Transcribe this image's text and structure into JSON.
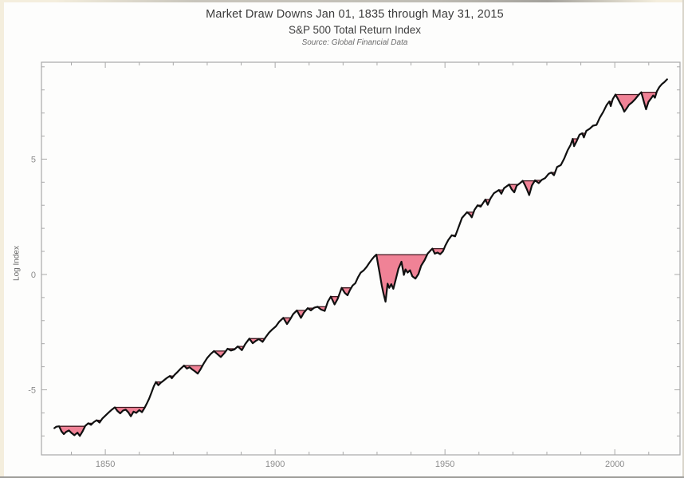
{
  "chart_data": {
    "type": "line",
    "title": "Market Draw Downs Jan 01, 1835 through May 31, 2015",
    "subtitle": "S&P 500 Total Return Index",
    "source": "Source: Global Financial Data",
    "xlabel": "",
    "ylabel": "Log Index",
    "xlim": [
      1831.2,
      2019.2
    ],
    "ylim": [
      -7.82,
      9.2
    ],
    "x_ticks": [
      1850,
      1900,
      1950,
      2000
    ],
    "x_tick_labels": [
      "1850",
      "1900",
      "1950",
      "2000"
    ],
    "x_minor_tick_step_years": 10,
    "y_ticks": [
      -5,
      0,
      5
    ],
    "y_tick_labels": [
      "-5",
      "0",
      "5"
    ],
    "y_minor_tick_step": 1,
    "grid": false,
    "legend": "none",
    "frame": true,
    "axis_color": "#a9a9a9",
    "line_color": "#101010",
    "drawdown_fill": "#f08296",
    "drawdown_outline": "#421820",
    "drawdowns_shaded": true,
    "series": [
      {
        "name": "S&P 500 Total Return (log index)",
        "points": [
          [
            1835.0,
            -6.66
          ],
          [
            1835.6,
            -6.6
          ],
          [
            1836.4,
            -6.58
          ],
          [
            1837.1,
            -6.8
          ],
          [
            1837.8,
            -6.92
          ],
          [
            1838.5,
            -6.82
          ],
          [
            1839.3,
            -6.76
          ],
          [
            1840.1,
            -6.88
          ],
          [
            1840.9,
            -6.97
          ],
          [
            1841.8,
            -6.86
          ],
          [
            1842.5,
            -7.0
          ],
          [
            1843.3,
            -6.8
          ],
          [
            1844.1,
            -6.56
          ],
          [
            1845.0,
            -6.45
          ],
          [
            1845.8,
            -6.52
          ],
          [
            1846.6,
            -6.4
          ],
          [
            1847.5,
            -6.32
          ],
          [
            1848.3,
            -6.42
          ],
          [
            1849.1,
            -6.25
          ],
          [
            1850.0,
            -6.12
          ],
          [
            1851.0,
            -5.98
          ],
          [
            1852.0,
            -5.85
          ],
          [
            1852.8,
            -5.76
          ],
          [
            1853.6,
            -5.92
          ],
          [
            1854.4,
            -6.02
          ],
          [
            1855.2,
            -5.9
          ],
          [
            1856.0,
            -5.86
          ],
          [
            1856.8,
            -5.98
          ],
          [
            1857.5,
            -6.15
          ],
          [
            1858.3,
            -5.95
          ],
          [
            1859.1,
            -6.0
          ],
          [
            1860.0,
            -5.88
          ],
          [
            1860.8,
            -5.97
          ],
          [
            1861.5,
            -5.8
          ],
          [
            1862.2,
            -5.6
          ],
          [
            1862.9,
            -5.38
          ],
          [
            1863.6,
            -5.12
          ],
          [
            1864.3,
            -4.84
          ],
          [
            1864.9,
            -4.66
          ],
          [
            1865.6,
            -4.8
          ],
          [
            1866.3,
            -4.7
          ],
          [
            1867.0,
            -4.62
          ],
          [
            1868.0,
            -4.5
          ],
          [
            1869.0,
            -4.4
          ],
          [
            1869.6,
            -4.5
          ],
          [
            1870.4,
            -4.35
          ],
          [
            1871.3,
            -4.22
          ],
          [
            1872.2,
            -4.08
          ],
          [
            1873.2,
            -3.95
          ],
          [
            1874.0,
            -4.08
          ],
          [
            1874.8,
            -4.02
          ],
          [
            1875.6,
            -4.12
          ],
          [
            1876.4,
            -4.2
          ],
          [
            1877.2,
            -4.3
          ],
          [
            1878.0,
            -4.12
          ],
          [
            1879.0,
            -3.85
          ],
          [
            1880.0,
            -3.62
          ],
          [
            1881.0,
            -3.45
          ],
          [
            1882.0,
            -3.32
          ],
          [
            1883.0,
            -3.45
          ],
          [
            1884.0,
            -3.58
          ],
          [
            1885.0,
            -3.42
          ],
          [
            1886.0,
            -3.22
          ],
          [
            1887.0,
            -3.3
          ],
          [
            1888.0,
            -3.25
          ],
          [
            1889.0,
            -3.12
          ],
          [
            1890.2,
            -3.28
          ],
          [
            1891.2,
            -3.02
          ],
          [
            1892.4,
            -2.78
          ],
          [
            1893.4,
            -2.98
          ],
          [
            1894.3,
            -2.88
          ],
          [
            1895.2,
            -2.8
          ],
          [
            1896.3,
            -2.92
          ],
          [
            1897.2,
            -2.72
          ],
          [
            1898.2,
            -2.52
          ],
          [
            1899.2,
            -2.38
          ],
          [
            1900.2,
            -2.25
          ],
          [
            1901.2,
            -2.05
          ],
          [
            1902.4,
            -1.88
          ],
          [
            1903.5,
            -2.15
          ],
          [
            1904.4,
            -1.95
          ],
          [
            1905.3,
            -1.72
          ],
          [
            1906.4,
            -1.56
          ],
          [
            1907.6,
            -1.88
          ],
          [
            1908.5,
            -1.65
          ],
          [
            1909.6,
            -1.46
          ],
          [
            1910.5,
            -1.56
          ],
          [
            1911.5,
            -1.44
          ],
          [
            1912.5,
            -1.4
          ],
          [
            1913.5,
            -1.52
          ],
          [
            1914.6,
            -1.58
          ],
          [
            1915.5,
            -1.18
          ],
          [
            1916.4,
            -0.96
          ],
          [
            1917.5,
            -1.3
          ],
          [
            1918.4,
            -1.06
          ],
          [
            1919.6,
            -0.58
          ],
          [
            1920.5,
            -0.8
          ],
          [
            1921.3,
            -0.9
          ],
          [
            1922.0,
            -0.68
          ],
          [
            1922.8,
            -0.48
          ],
          [
            1923.6,
            -0.38
          ],
          [
            1924.4,
            -0.12
          ],
          [
            1925.2,
            0.08
          ],
          [
            1926.1,
            0.18
          ],
          [
            1926.9,
            0.32
          ],
          [
            1927.7,
            0.5
          ],
          [
            1928.5,
            0.66
          ],
          [
            1929.2,
            0.78
          ],
          [
            1929.8,
            0.86
          ],
          [
            1930.4,
            0.35
          ],
          [
            1930.9,
            -0.05
          ],
          [
            1931.4,
            -0.48
          ],
          [
            1931.9,
            -0.82
          ],
          [
            1932.5,
            -1.18
          ],
          [
            1933.1,
            -0.4
          ],
          [
            1933.6,
            -0.58
          ],
          [
            1934.2,
            -0.42
          ],
          [
            1934.8,
            -0.62
          ],
          [
            1935.5,
            -0.22
          ],
          [
            1936.3,
            0.25
          ],
          [
            1937.2,
            0.55
          ],
          [
            1937.9,
            -0.02
          ],
          [
            1938.4,
            0.22
          ],
          [
            1939.0,
            0.08
          ],
          [
            1939.7,
            0.18
          ],
          [
            1940.4,
            -0.08
          ],
          [
            1941.3,
            -0.18
          ],
          [
            1942.2,
            0.02
          ],
          [
            1943.0,
            0.38
          ],
          [
            1944.0,
            0.62
          ],
          [
            1944.9,
            0.9
          ],
          [
            1945.8,
            1.05
          ],
          [
            1946.3,
            1.12
          ],
          [
            1947.0,
            0.9
          ],
          [
            1947.8,
            0.95
          ],
          [
            1948.6,
            0.88
          ],
          [
            1949.4,
            1.0
          ],
          [
            1950.1,
            1.25
          ],
          [
            1951.0,
            1.5
          ],
          [
            1952.0,
            1.7
          ],
          [
            1953.0,
            1.65
          ],
          [
            1954.0,
            2.05
          ],
          [
            1955.0,
            2.45
          ],
          [
            1956.5,
            2.7
          ],
          [
            1957.3,
            2.6
          ],
          [
            1957.9,
            2.48
          ],
          [
            1958.7,
            2.8
          ],
          [
            1959.6,
            3.0
          ],
          [
            1960.5,
            2.94
          ],
          [
            1961.9,
            3.25
          ],
          [
            1962.6,
            3.02
          ],
          [
            1963.4,
            3.3
          ],
          [
            1964.4,
            3.52
          ],
          [
            1965.9,
            3.66
          ],
          [
            1966.6,
            3.5
          ],
          [
            1967.4,
            3.74
          ],
          [
            1968.9,
            3.9
          ],
          [
            1969.6,
            3.7
          ],
          [
            1970.4,
            3.56
          ],
          [
            1971.1,
            3.85
          ],
          [
            1972.1,
            3.96
          ],
          [
            1972.9,
            4.06
          ],
          [
            1973.6,
            3.86
          ],
          [
            1974.2,
            3.66
          ],
          [
            1974.8,
            3.44
          ],
          [
            1975.6,
            3.86
          ],
          [
            1976.5,
            4.08
          ],
          [
            1977.6,
            3.96
          ],
          [
            1978.5,
            4.1
          ],
          [
            1979.5,
            4.18
          ],
          [
            1980.5,
            4.36
          ],
          [
            1981.3,
            4.42
          ],
          [
            1982.1,
            4.3
          ],
          [
            1983.0,
            4.66
          ],
          [
            1984.1,
            4.74
          ],
          [
            1985.1,
            5.02
          ],
          [
            1986.1,
            5.38
          ],
          [
            1987.0,
            5.62
          ],
          [
            1987.6,
            5.88
          ],
          [
            1988.0,
            5.56
          ],
          [
            1988.7,
            5.76
          ],
          [
            1989.6,
            6.06
          ],
          [
            1990.4,
            6.12
          ],
          [
            1990.9,
            5.94
          ],
          [
            1991.6,
            6.22
          ],
          [
            1992.6,
            6.32
          ],
          [
            1993.6,
            6.45
          ],
          [
            1994.6,
            6.48
          ],
          [
            1995.6,
            6.8
          ],
          [
            1996.6,
            7.05
          ],
          [
            1997.6,
            7.35
          ],
          [
            1998.4,
            7.5
          ],
          [
            1998.8,
            7.3
          ],
          [
            1999.4,
            7.6
          ],
          [
            2000.2,
            7.8
          ],
          [
            2000.9,
            7.62
          ],
          [
            2001.6,
            7.42
          ],
          [
            2002.1,
            7.3
          ],
          [
            2002.8,
            7.06
          ],
          [
            2003.4,
            7.18
          ],
          [
            2004.2,
            7.36
          ],
          [
            2005.1,
            7.46
          ],
          [
            2006.1,
            7.62
          ],
          [
            2007.0,
            7.78
          ],
          [
            2007.8,
            7.9
          ],
          [
            2008.5,
            7.52
          ],
          [
            2009.2,
            7.16
          ],
          [
            2009.9,
            7.48
          ],
          [
            2010.6,
            7.62
          ],
          [
            2011.3,
            7.76
          ],
          [
            2011.8,
            7.66
          ],
          [
            2012.4,
            7.94
          ],
          [
            2013.1,
            8.12
          ],
          [
            2013.9,
            8.26
          ],
          [
            2014.6,
            8.34
          ],
          [
            2015.4,
            8.46
          ]
        ]
      }
    ],
    "major_drawdowns_visible": [
      "1836-1844",
      "1853-1861",
      "1873-1878",
      "1882-1886",
      "1892-1897",
      "1902-1904",
      "1906-1909",
      "1929-1944",
      "1946-1950",
      "1969-1971",
      "1973-1978",
      "1987-1989",
      "2000-2007",
      "2007-2012"
    ]
  }
}
